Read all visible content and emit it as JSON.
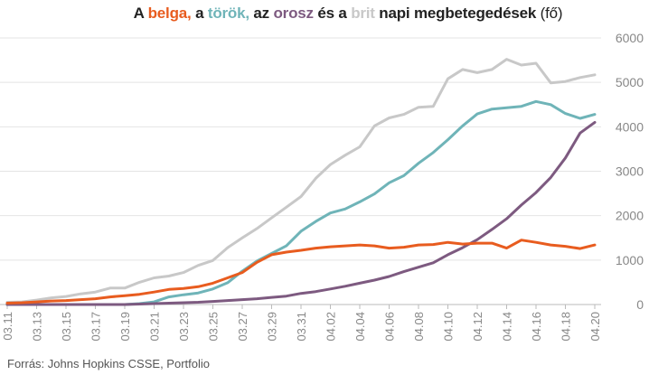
{
  "title_parts": {
    "p1": "A ",
    "c1": "belga,",
    "p2": " a ",
    "c2": "török,",
    "p3": " az ",
    "c3": "orosz",
    "p4": " és a ",
    "c4": "brit",
    "p5": " napi megbetegedések ",
    "p6": "(fő)"
  },
  "source": "Forrás: Johns Hopkins CSSE, Portfolio",
  "chart_data": {
    "type": "line",
    "title": "A belga, a török, az orosz és a brit napi megbetegedések (fő)",
    "ylim": [
      0,
      6000
    ],
    "yticks": [
      0,
      1000,
      2000,
      3000,
      4000,
      5000,
      6000
    ],
    "grid": true,
    "x": [
      "03.11",
      "03.12",
      "03.13",
      "03.14",
      "03.15",
      "03.16",
      "03.17",
      "03.18",
      "03.19",
      "03.20",
      "03.21",
      "03.22",
      "03.23",
      "03.24",
      "03.25",
      "03.26",
      "03.27",
      "03.28",
      "03.29",
      "03.30",
      "03.31",
      "04.01",
      "04.02",
      "04.03",
      "04.04",
      "04.05",
      "04.06",
      "04.07",
      "04.08",
      "04.09",
      "04.10",
      "04.11",
      "04.12",
      "04.13",
      "04.14",
      "04.15",
      "04.16",
      "04.17",
      "04.18",
      "04.19",
      "04.20"
    ],
    "xtick_labels": [
      "03.11",
      "03.13",
      "03.15",
      "03.17",
      "03.19",
      "03.21",
      "03.23",
      "03.25",
      "03.27",
      "03.29",
      "03.31",
      "04.02",
      "04.04",
      "04.06",
      "04.08",
      "04.10",
      "04.12",
      "04.14",
      "04.16",
      "04.18",
      "04.20"
    ],
    "series": [
      {
        "name": "brit",
        "color": "#c8c8c8",
        "values": [
          50,
          60,
          100,
          150,
          180,
          240,
          280,
          370,
          370,
          500,
          600,
          640,
          720,
          880,
          990,
          1280,
          1500,
          1710,
          1950,
          2190,
          2430,
          2840,
          3150,
          3360,
          3550,
          4020,
          4200,
          4280,
          4440,
          4460,
          5080,
          5290,
          5220,
          5290,
          5520,
          5390,
          5430,
          4990,
          5020,
          5110,
          5170
        ]
      },
      {
        "name": "török",
        "color": "#6fb4b8",
        "values": [
          0,
          0,
          0,
          0,
          0,
          0,
          0,
          0,
          0,
          20,
          60,
          170,
          220,
          260,
          350,
          490,
          750,
          980,
          1150,
          1320,
          1650,
          1870,
          2060,
          2150,
          2310,
          2490,
          2740,
          2900,
          3180,
          3420,
          3710,
          4020,
          4290,
          4400,
          4430,
          4460,
          4570,
          4500,
          4300,
          4190,
          4280
        ]
      },
      {
        "name": "orosz",
        "color": "#7d5a80",
        "values": [
          0,
          0,
          0,
          0,
          0,
          0,
          0,
          0,
          0,
          10,
          20,
          30,
          40,
          50,
          70,
          90,
          110,
          130,
          160,
          190,
          250,
          290,
          350,
          410,
          480,
          550,
          630,
          740,
          840,
          940,
          1120,
          1280,
          1460,
          1690,
          1930,
          2240,
          2520,
          2860,
          3300,
          3860,
          4100
        ]
      },
      {
        "name": "belga",
        "color": "#e85c1f",
        "values": [
          30,
          40,
          60,
          80,
          90,
          110,
          130,
          170,
          200,
          230,
          280,
          340,
          360,
          400,
          480,
          600,
          720,
          950,
          1120,
          1180,
          1220,
          1270,
          1300,
          1320,
          1340,
          1320,
          1270,
          1290,
          1340,
          1350,
          1400,
          1360,
          1380,
          1380,
          1270,
          1450,
          1400,
          1340,
          1310,
          1260,
          1340
        ]
      }
    ],
    "xlabel": "",
    "ylabel": ""
  }
}
